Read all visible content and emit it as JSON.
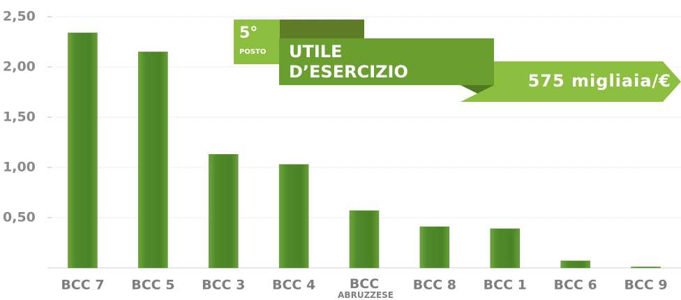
{
  "chart_data": {
    "type": "bar",
    "categories": [
      "BCC 7",
      "BCC 5",
      "BCC 3",
      "BCC 4",
      "BCC ABRUZZESE",
      "BCC 8",
      "BCC 1",
      "BCC 6",
      "BCC 9"
    ],
    "values": [
      2.34,
      2.15,
      1.13,
      1.03,
      0.57,
      0.41,
      0.39,
      0.07,
      0.01
    ],
    "color": "#4f8a2a",
    "ylim": [
      0,
      2.5
    ],
    "yticks": [
      {
        "value": 0.5,
        "label": "0,50"
      },
      {
        "value": 1,
        "label": "1,00"
      },
      {
        "value": 1.5,
        "label": "1,50"
      },
      {
        "value": 2,
        "label": "2,00"
      },
      {
        "value": 2.5,
        "label": "2,50"
      }
    ],
    "grid": true,
    "annotations": {
      "rank": "5°",
      "rank_word": "POSTO",
      "title_line1": "UTILE",
      "title_line2": "D’ESERCIZIO",
      "amount": "575 migliaia/€"
    }
  }
}
